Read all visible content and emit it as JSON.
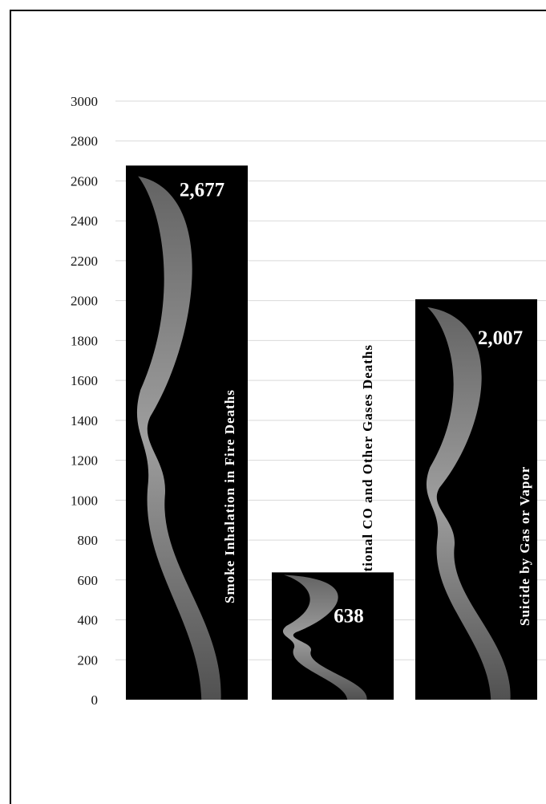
{
  "chart_data": {
    "type": "bar",
    "categories": [
      "Smoke Inhalation in Fire Deaths",
      "Unintentional CO and Other Gases Deaths",
      "Suicide by Gas or Vapor"
    ],
    "values": [
      2677,
      638,
      2007
    ],
    "data_labels": [
      "2,677",
      "638",
      "2,007"
    ],
    "y_ticks": [
      "0",
      "200",
      "400",
      "600",
      "800",
      "1000",
      "1200",
      "1400",
      "1600",
      "1800",
      "2000",
      "2200",
      "2400",
      "2600",
      "2800",
      "3000"
    ],
    "ylim": [
      0,
      3000
    ],
    "title": "",
    "xlabel": "",
    "ylabel": "",
    "grid": true,
    "legend": "none",
    "colors": {
      "bar": "#000000",
      "smoke": "#8a8a8a",
      "category_label_inside": "#ffffff",
      "category_label_outside": "#000000"
    }
  }
}
